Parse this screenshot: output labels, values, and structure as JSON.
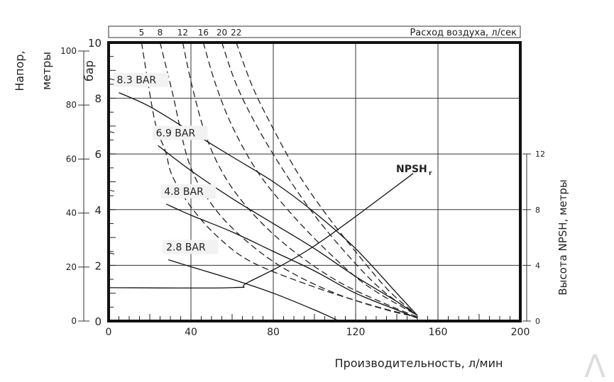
{
  "chart_data": {
    "type": "line",
    "xlabel": "Производительность, л/мин",
    "xlim": [
      0,
      200
    ],
    "xticks": [
      0,
      40,
      80,
      120,
      160,
      200
    ],
    "ylabel_bar": "бар",
    "ylim_bar": [
      0,
      10
    ],
    "yticks_bar": [
      0,
      2,
      4,
      6,
      8,
      10
    ],
    "ylabel_m": "Напор, метры",
    "yticks_m": [
      0,
      20,
      40,
      60,
      80,
      100
    ],
    "ylabel_right": "Высота NPSH, метры",
    "yticks_right": [
      0,
      4,
      8,
      12
    ],
    "top_axis_label": "Расход воздуха, л/сек",
    "grid": true,
    "pressure_series": [
      {
        "name": "8.3 BAR",
        "points": [
          [
            5,
            8.2
          ],
          [
            20,
            7.7
          ],
          [
            40,
            6.8
          ],
          [
            60,
            5.9
          ],
          [
            80,
            5.0
          ],
          [
            100,
            3.9
          ],
          [
            120,
            2.6
          ],
          [
            140,
            1.0
          ],
          [
            150,
            0.2
          ]
        ]
      },
      {
        "name": "6.9 BAR",
        "points": [
          [
            24,
            6.3
          ],
          [
            40,
            5.4
          ],
          [
            60,
            4.4
          ],
          [
            80,
            3.5
          ],
          [
            100,
            2.6
          ],
          [
            120,
            1.6
          ],
          [
            140,
            0.7
          ],
          [
            150,
            0.2
          ]
        ]
      },
      {
        "name": "4.8 BAR",
        "points": [
          [
            28,
            4.2
          ],
          [
            40,
            3.8
          ],
          [
            60,
            3.2
          ],
          [
            80,
            2.5
          ],
          [
            100,
            1.8
          ],
          [
            120,
            1.0
          ],
          [
            140,
            0.4
          ],
          [
            150,
            0.1
          ]
        ]
      },
      {
        "name": "2.8 BAR",
        "points": [
          [
            29,
            2.2
          ],
          [
            40,
            1.95
          ],
          [
            60,
            1.5
          ],
          [
            80,
            1.0
          ],
          [
            100,
            0.4
          ],
          [
            112,
            0
          ]
        ]
      }
    ],
    "air_series": [
      {
        "name": "5",
        "points": [
          [
            16,
            10
          ],
          [
            22.4,
            7.2
          ],
          [
            27.6,
            6.1
          ],
          [
            31,
            5.2
          ],
          [
            40,
            4.1
          ],
          [
            52.8,
            3.04
          ],
          [
            70,
            2.1
          ],
          [
            102,
            1.17
          ],
          [
            131,
            0.5
          ],
          [
            150,
            0.15
          ]
        ]
      },
      {
        "name": "8",
        "points": [
          [
            25,
            10
          ],
          [
            31,
            8.2
          ],
          [
            39,
            5.7
          ],
          [
            50,
            4.2
          ],
          [
            65,
            3.0
          ],
          [
            85,
            1.9
          ],
          [
            110,
            1.0
          ],
          [
            135,
            0.4
          ],
          [
            150,
            0.15
          ]
        ]
      },
      {
        "name": "12",
        "points": [
          [
            36,
            10
          ],
          [
            41,
            8.3
          ],
          [
            48,
            6.5
          ],
          [
            58,
            5.0
          ],
          [
            72,
            3.7
          ],
          [
            90,
            2.5
          ],
          [
            112,
            1.4
          ],
          [
            135,
            0.6
          ],
          [
            150,
            0.15
          ]
        ]
      },
      {
        "name": "16",
        "points": [
          [
            46,
            10
          ],
          [
            52,
            8.5
          ],
          [
            60,
            7
          ],
          [
            72,
            5.4
          ],
          [
            87,
            4
          ],
          [
            105,
            2.6
          ],
          [
            125,
            1.3
          ],
          [
            150,
            0.2
          ]
        ]
      },
      {
        "name": "20",
        "points": [
          [
            55,
            10
          ],
          [
            62,
            8.5
          ],
          [
            72,
            7
          ],
          [
            85,
            5.4
          ],
          [
            100,
            3.8
          ],
          [
            117,
            2.3
          ],
          [
            133,
            1.1
          ],
          [
            150,
            0.2
          ]
        ]
      },
      {
        "name": "22",
        "points": [
          [
            62,
            10
          ],
          [
            70,
            8.4
          ],
          [
            80,
            6.9
          ],
          [
            92,
            5.3
          ],
          [
            106,
            3.8
          ],
          [
            121,
            2.4
          ],
          [
            136,
            1.1
          ],
          [
            150,
            0.2
          ]
        ]
      }
    ],
    "npsh_series": {
      "name": "NPSH",
      "subscript": "r",
      "points_m": [
        [
          0,
          2.4
        ],
        [
          60,
          2.4
        ],
        [
          68,
          2.8
        ],
        [
          100,
          5.4
        ],
        [
          148,
          10.6
        ]
      ]
    }
  },
  "watermark": "Λ"
}
